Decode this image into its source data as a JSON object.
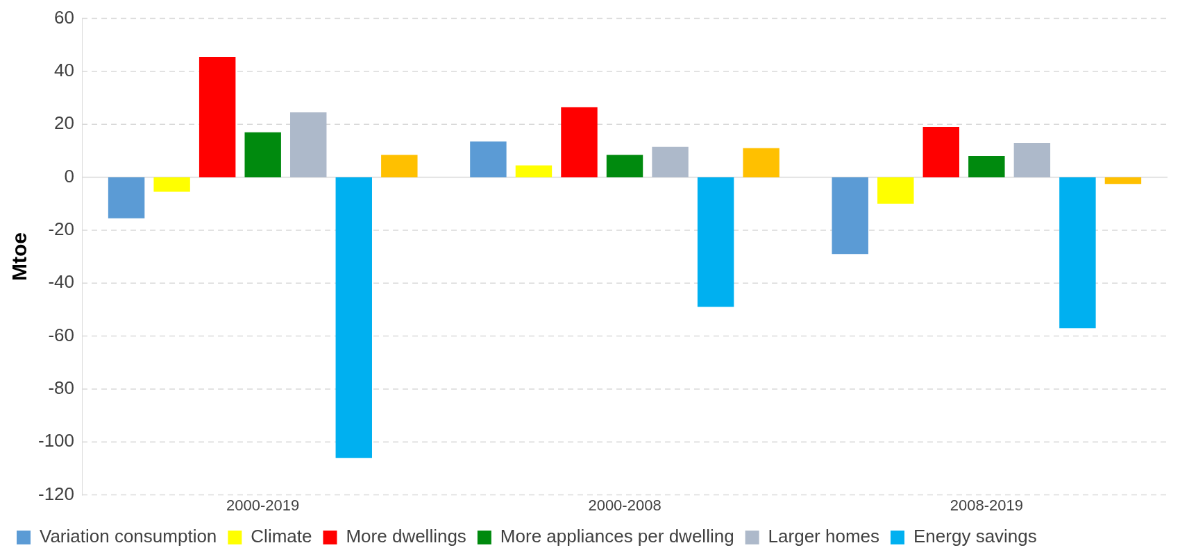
{
  "chart_data": {
    "type": "bar",
    "ylabel": "Mtoe",
    "categories": [
      "2000-2019",
      "2000-2008",
      "2008-2019"
    ],
    "series": [
      {
        "name": "Variation consumption",
        "color": "#5b9bd5",
        "values": [
          -15.5,
          13.5,
          -29
        ]
      },
      {
        "name": "Climate",
        "color": "#ffff00",
        "values": [
          -5.5,
          4.5,
          -10
        ]
      },
      {
        "name": "More dwellings",
        "color": "#ff0000",
        "values": [
          45.5,
          26.5,
          19
        ]
      },
      {
        "name": "More appliances per dwelling",
        "color": "#008a0e",
        "values": [
          17,
          8.5,
          8
        ]
      },
      {
        "name": "Larger homes",
        "color": "#adb9ca",
        "values": [
          24.5,
          11.5,
          13
        ]
      },
      {
        "name": "Energy savings",
        "color": "#00b0f0",
        "values": [
          -106,
          -49,
          -57
        ]
      },
      {
        "color": "#ffc000",
        "values": [
          8.5,
          11,
          -2.5
        ]
      }
    ],
    "ylim": [
      -120,
      60
    ],
    "yticks": [
      -120,
      -100,
      -80,
      -60,
      -40,
      -20,
      0,
      20,
      40,
      60
    ],
    "grid": "y",
    "legend": "bottom"
  }
}
